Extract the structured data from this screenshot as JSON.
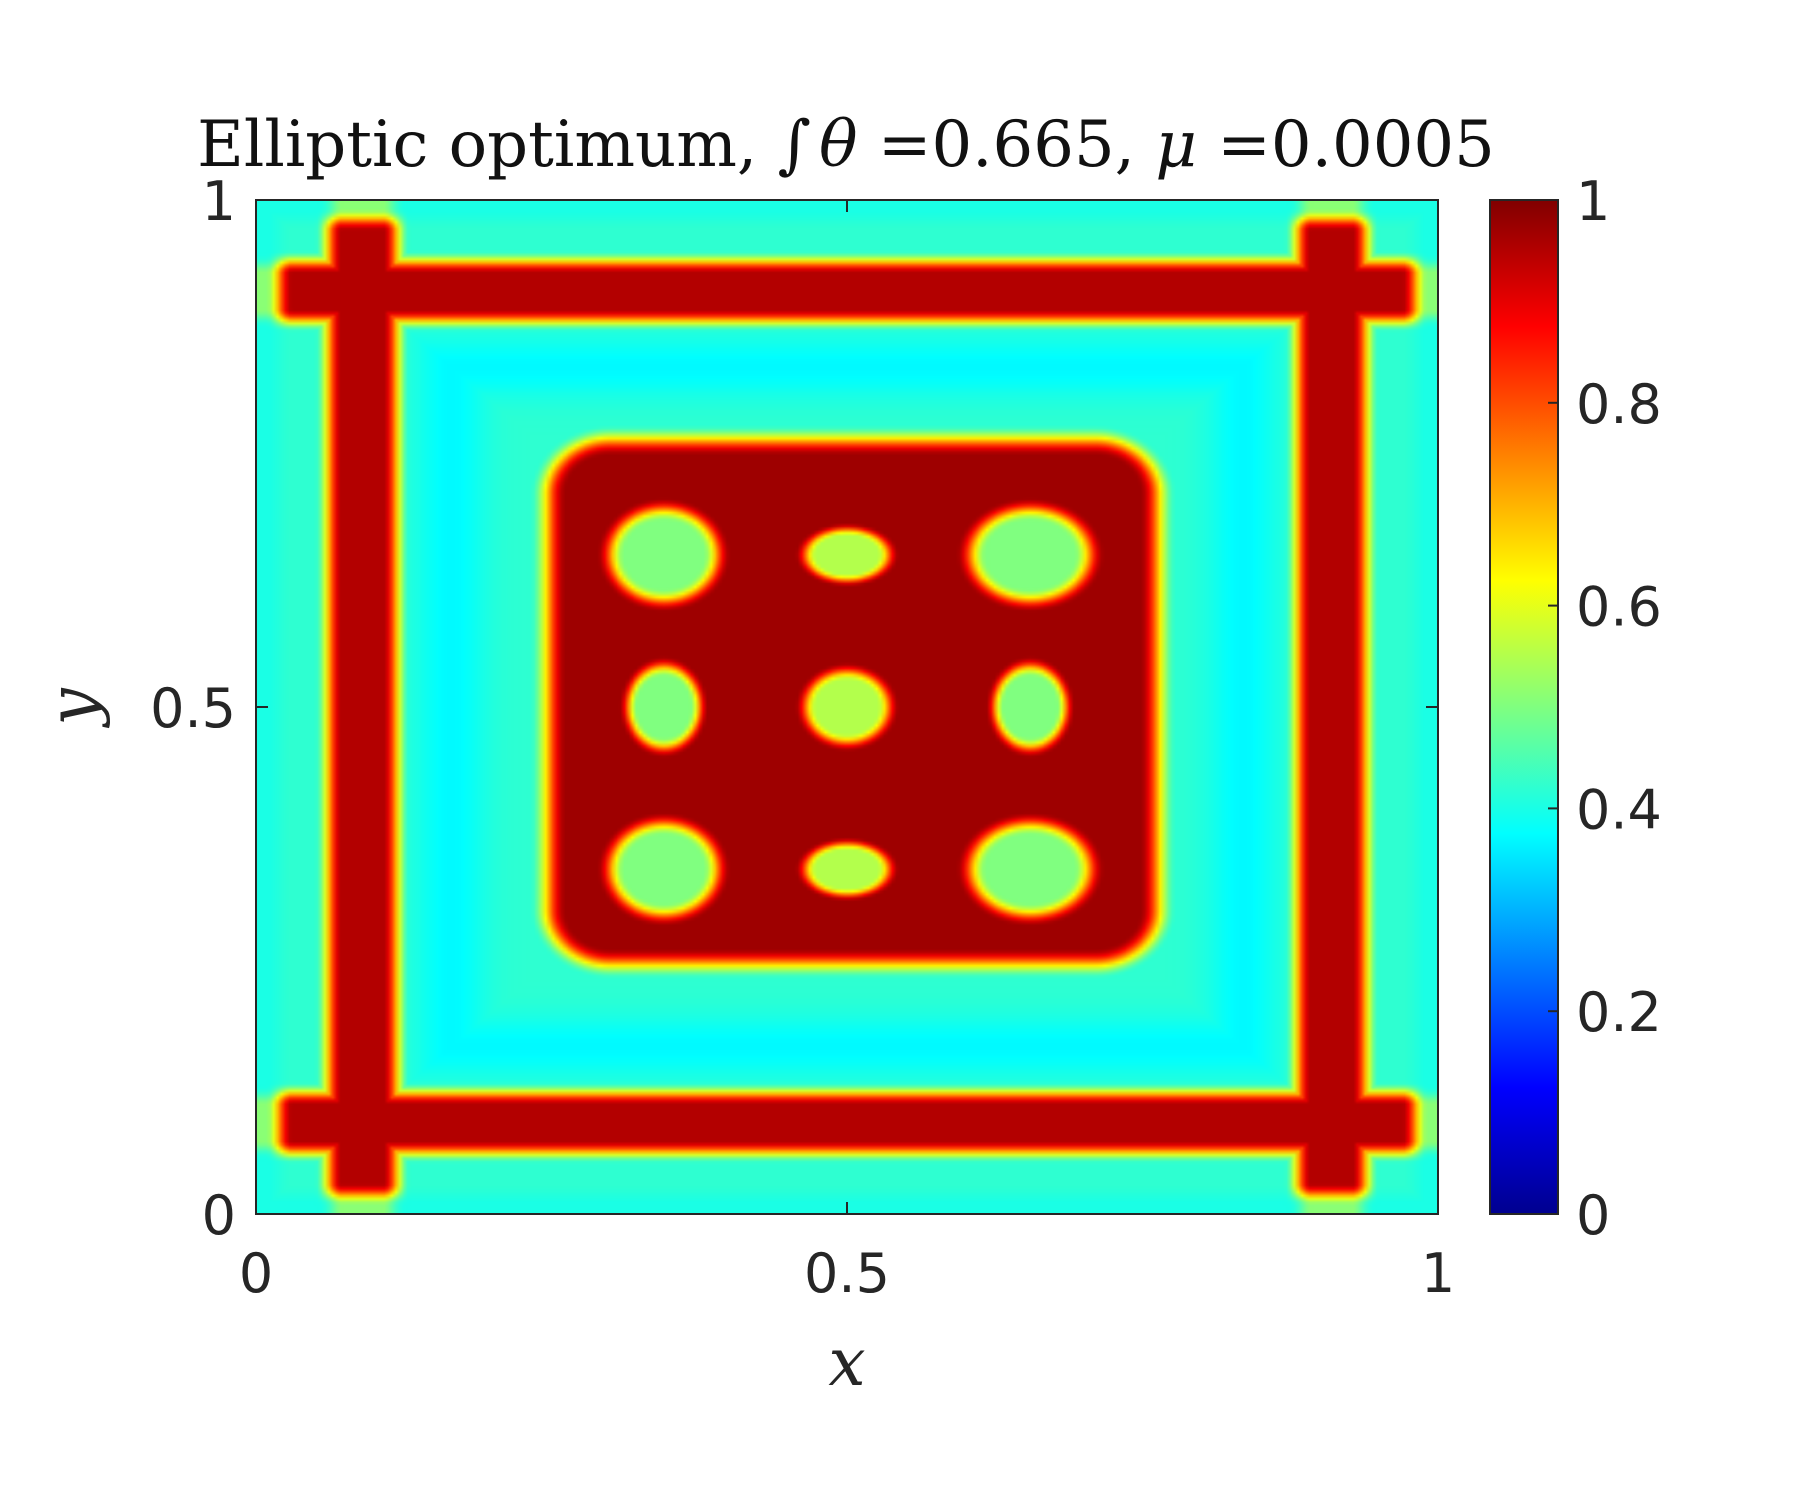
{
  "chart_data": {
    "type": "heatmap",
    "title": {
      "prefix": "Elliptic optimum, ",
      "integral": "∫",
      "theta": "θ",
      "eq1": " =0.665, ",
      "mu": "μ",
      "eq2": " =0.0005"
    },
    "xlabel": "x",
    "ylabel": "y",
    "xlim": [
      0,
      1
    ],
    "ylim": [
      0,
      1
    ],
    "x_ticks": [
      {
        "value": 0,
        "label": "0"
      },
      {
        "value": 0.5,
        "label": "0.5"
      },
      {
        "value": 1,
        "label": "1"
      }
    ],
    "y_ticks": [
      {
        "value": 0,
        "label": "0"
      },
      {
        "value": 0.5,
        "label": "0.5"
      },
      {
        "value": 1,
        "label": "1"
      }
    ],
    "colorbar": {
      "colormap": "jet",
      "clim": [
        0,
        1
      ],
      "ticks": [
        {
          "value": 0,
          "label": "0"
        },
        {
          "value": 0.2,
          "label": "0.2"
        },
        {
          "value": 0.4,
          "label": "0.4"
        },
        {
          "value": 0.6,
          "label": "0.6"
        },
        {
          "value": 0.8,
          "label": "0.8"
        },
        {
          "value": 1,
          "label": "1"
        }
      ]
    },
    "grid": false,
    "field": {
      "description_of_levels": "theta(x,y) on [0,1]^2",
      "background_level": 0.42,
      "outer_frame_bands": {
        "positions": [
          0.09,
          0.91
        ],
        "width": 0.032,
        "level": 0.95
      },
      "edge_level": 0.4,
      "edge_width": 0.03,
      "inner_block": {
        "range": [
          0.25,
          0.76
        ],
        "level": 0.97,
        "corner_radius": 0.05
      },
      "holes": [
        {
          "x": 0.345,
          "y": 0.65,
          "rx": 0.045,
          "ry": 0.045,
          "level": 0.5
        },
        {
          "x": 0.5,
          "y": 0.65,
          "rx": 0.035,
          "ry": 0.025,
          "level": 0.55
        },
        {
          "x": 0.655,
          "y": 0.65,
          "rx": 0.05,
          "ry": 0.045,
          "level": 0.5
        },
        {
          "x": 0.345,
          "y": 0.5,
          "rx": 0.03,
          "ry": 0.04,
          "level": 0.5
        },
        {
          "x": 0.5,
          "y": 0.5,
          "rx": 0.035,
          "ry": 0.035,
          "level": 0.55
        },
        {
          "x": 0.655,
          "y": 0.5,
          "rx": 0.03,
          "ry": 0.04,
          "level": 0.5
        },
        {
          "x": 0.345,
          "y": 0.34,
          "rx": 0.045,
          "ry": 0.045,
          "level": 0.5
        },
        {
          "x": 0.5,
          "y": 0.34,
          "rx": 0.035,
          "ry": 0.025,
          "level": 0.55
        },
        {
          "x": 0.655,
          "y": 0.34,
          "rx": 0.05,
          "ry": 0.045,
          "level": 0.5
        }
      ]
    }
  }
}
